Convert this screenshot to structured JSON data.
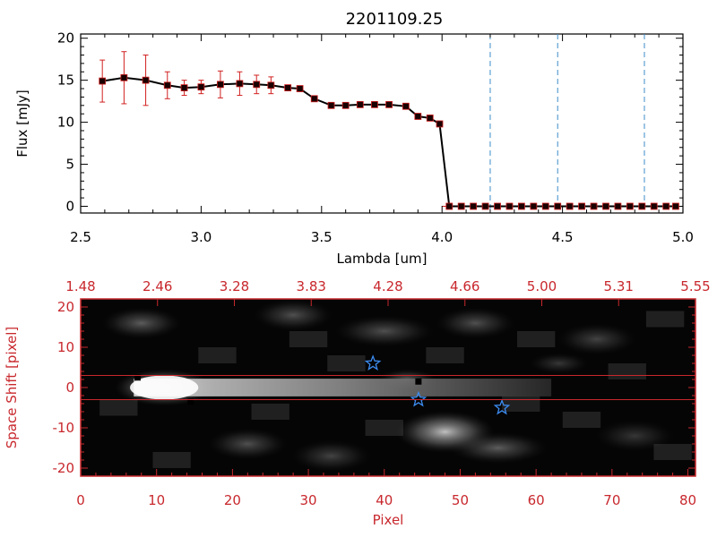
{
  "title": "2201109.25",
  "colors": {
    "black": "#000000",
    "red": "#c8282d",
    "error_bar": "#d22020",
    "dashed_line": "#3c8cc8",
    "star": "#3c8cf0",
    "image_bg": "#050505"
  },
  "chart_data": [
    {
      "type": "line",
      "name": "spectrum",
      "xlabel": "Lambda [um]",
      "ylabel": "Flux [mJy]",
      "xlim": [
        2.5,
        5.0
      ],
      "ylim": [
        -0.8,
        20.5
      ],
      "x_ticks": [
        "2.5",
        "3.0",
        "3.5",
        "4.0",
        "4.5",
        "5.0"
      ],
      "y_ticks": [
        "0",
        "5",
        "10",
        "15",
        "20"
      ],
      "x": [
        2.59,
        2.68,
        2.77,
        2.86,
        2.93,
        3.0,
        3.08,
        3.16,
        3.23,
        3.29,
        3.36,
        3.41,
        3.47,
        3.54,
        3.6,
        3.66,
        3.72,
        3.78,
        3.85,
        3.9,
        3.95,
        3.99,
        4.03,
        4.08,
        4.13,
        4.18,
        4.23,
        4.28,
        4.33,
        4.38,
        4.43,
        4.48,
        4.53,
        4.58,
        4.63,
        4.68,
        4.73,
        4.78,
        4.83,
        4.88,
        4.93,
        4.97
      ],
      "y": [
        14.9,
        15.3,
        15.0,
        14.4,
        14.1,
        14.2,
        14.5,
        14.6,
        14.5,
        14.4,
        14.1,
        14.0,
        12.8,
        12.0,
        12.0,
        12.1,
        12.1,
        12.1,
        11.9,
        10.7,
        10.5,
        9.8,
        0.0,
        0.0,
        0.0,
        0.0,
        0.0,
        0.0,
        0.0,
        0.0,
        0.0,
        0.0,
        0.0,
        0.0,
        0.0,
        0.0,
        0.0,
        0.0,
        0.0,
        0.0,
        0.0,
        0.0
      ],
      "yerr": [
        2.5,
        3.1,
        3.0,
        1.6,
        0.9,
        0.8,
        1.6,
        1.4,
        1.1,
        1.0,
        0,
        0,
        0,
        0,
        0,
        0,
        0,
        0,
        0,
        0,
        0,
        0,
        0,
        0,
        0,
        0,
        0,
        0,
        0,
        0,
        0,
        0,
        0,
        0,
        0,
        0,
        0,
        0,
        0,
        0,
        0,
        0
      ],
      "dashed_vlines_x": [
        4.2,
        4.48,
        4.84
      ],
      "dashed_hline_y": 0
    },
    {
      "type": "heatmap",
      "name": "spectral-image",
      "xlabel": "Pixel",
      "ylabel": "Space Shift [pixel]",
      "xlim": [
        0,
        81
      ],
      "ylim": [
        -22,
        22
      ],
      "x_ticks": [
        "0",
        "10",
        "20",
        "30",
        "40",
        "50",
        "60",
        "70",
        "80"
      ],
      "y_ticks": [
        "-20",
        "-10",
        "0",
        "10",
        "20"
      ],
      "top_axis_ticks": [
        "1.48",
        "2.46",
        "3.28",
        "3.83",
        "4.28",
        "4.66",
        "5.00",
        "5.31",
        "5.55"
      ],
      "hlines_y": [
        3,
        -3
      ],
      "trace": {
        "y": 0,
        "x_range": [
          7,
          62
        ],
        "peak_x": 11
      },
      "blobs": [
        {
          "x": 11,
          "y": 0,
          "rx": 5,
          "ry": 3.5,
          "level": 0.95
        },
        {
          "x": 48,
          "y": -11,
          "rx": 5,
          "ry": 4,
          "level": 0.75
        },
        {
          "x": 43,
          "y": 2,
          "rx": 3,
          "ry": 2,
          "level": 0.35
        },
        {
          "x": 8,
          "y": 16,
          "rx": 4,
          "ry": 3,
          "level": 0.35
        },
        {
          "x": 28,
          "y": 18,
          "rx": 4,
          "ry": 3,
          "level": 0.3
        },
        {
          "x": 40,
          "y": 14,
          "rx": 5,
          "ry": 3,
          "level": 0.3
        },
        {
          "x": 52,
          "y": 16,
          "rx": 4,
          "ry": 3,
          "level": 0.3
        },
        {
          "x": 68,
          "y": 12,
          "rx": 4,
          "ry": 3,
          "level": 0.25
        },
        {
          "x": 22,
          "y": -14,
          "rx": 4,
          "ry": 3,
          "level": 0.3
        },
        {
          "x": 55,
          "y": -15,
          "rx": 5,
          "ry": 3,
          "level": 0.35
        },
        {
          "x": 33,
          "y": -17,
          "rx": 4,
          "ry": 3,
          "level": 0.25
        },
        {
          "x": 73,
          "y": -12,
          "rx": 4,
          "ry": 3,
          "level": 0.2
        },
        {
          "x": 63,
          "y": 6,
          "rx": 3,
          "ry": 2,
          "level": 0.2
        }
      ],
      "dark_markers": [
        {
          "x": 7.5,
          "y": 2.5
        },
        {
          "x": 14.5,
          "y": -3.5
        },
        {
          "x": 44.5,
          "y": 1.5
        }
      ],
      "stars": [
        {
          "x": 38.5,
          "y": 6
        },
        {
          "x": 44.5,
          "y": -3
        },
        {
          "x": 55.5,
          "y": -5
        }
      ]
    }
  ]
}
